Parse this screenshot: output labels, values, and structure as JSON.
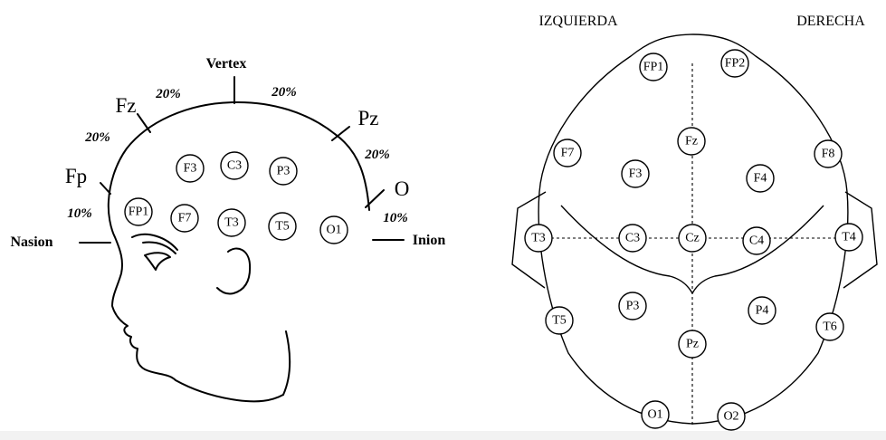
{
  "side_view": {
    "labels": {
      "vertex": "Vertex",
      "fz": "Fz",
      "pz": "Pz",
      "fp": "Fp",
      "o": "O",
      "nasion": "Nasion",
      "inion": "Inion"
    },
    "percentages": {
      "fp_fz": "20%",
      "fz_vertex": "20%",
      "vertex_pz": "20%",
      "pz_o": "20%",
      "nasion_fp": "10%",
      "o_inion": "10%"
    },
    "electrodes": [
      "F3",
      "C3",
      "P3",
      "FP1",
      "F7",
      "T3",
      "T5",
      "O1"
    ]
  },
  "top_view": {
    "left_label": "IZQUIERDA",
    "right_label": "DERECHA",
    "electrodes": [
      "FP1",
      "FP2",
      "Fz",
      "F7",
      "F8",
      "F3",
      "F4",
      "T3",
      "C3",
      "Cz",
      "C4",
      "T4",
      "P3",
      "P4",
      "T5",
      "T6",
      "Pz",
      "O1",
      "O2"
    ]
  }
}
